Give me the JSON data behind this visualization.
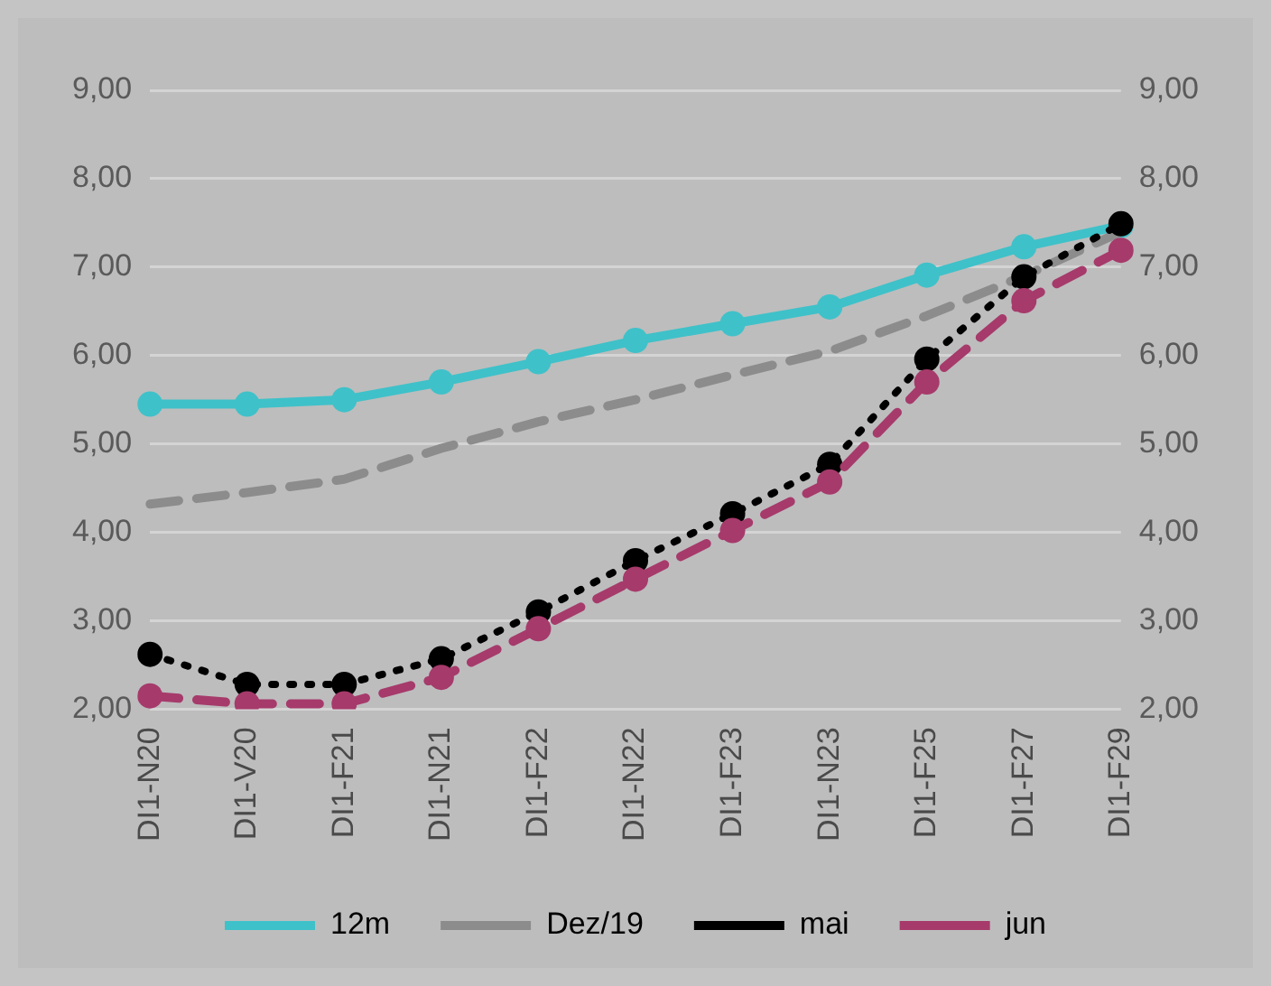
{
  "chart_data": {
    "type": "line",
    "categories": [
      "DI1-N20",
      "DI1-V20",
      "DI1-F21",
      "DI1-N21",
      "DI1-F22",
      "DI1-N22",
      "DI1-F23",
      "DI1-N23",
      "DI1-F25",
      "DI1-F27",
      "DI1-F29"
    ],
    "series": [
      {
        "name": "12m",
        "color": "#3fc1c9",
        "line_style": "solid",
        "marker": "circle",
        "values": [
          5.45,
          5.45,
          5.5,
          5.7,
          5.93,
          6.17,
          6.36,
          6.55,
          6.91,
          7.23,
          7.47
        ]
      },
      {
        "name": "Dez/19",
        "color": "#8c8c8c",
        "line_style": "dashed",
        "marker": "none",
        "values": [
          4.32,
          4.45,
          4.6,
          4.95,
          5.25,
          5.5,
          5.78,
          6.05,
          6.45,
          6.9,
          7.4
        ]
      },
      {
        "name": "mai",
        "color": "#000000",
        "line_style": "dotted",
        "marker": "circle",
        "values": [
          2.62,
          2.28,
          2.28,
          2.57,
          3.1,
          3.68,
          4.21,
          4.77,
          5.96,
          6.89,
          7.49
        ]
      },
      {
        "name": "jun",
        "color": "#a63a6b",
        "line_style": "dashed",
        "marker": "circle",
        "values": [
          2.15,
          2.06,
          2.06,
          2.36,
          2.91,
          3.47,
          4.02,
          4.57,
          5.7,
          6.62,
          7.19
        ]
      }
    ],
    "ylim": [
      2,
      9
    ],
    "yticks": [
      {
        "value": 2,
        "label": "2,00"
      },
      {
        "value": 3,
        "label": "3,00"
      },
      {
        "value": 4,
        "label": "4,00"
      },
      {
        "value": 5,
        "label": "5,00"
      },
      {
        "value": 6,
        "label": "6,00"
      },
      {
        "value": 7,
        "label": "7,00"
      },
      {
        "value": 8,
        "label": "8,00"
      },
      {
        "value": 9,
        "label": "9,00"
      }
    ],
    "y2lim": [
      2,
      9
    ],
    "y2ticks": [
      {
        "value": 2,
        "label": "2,00"
      },
      {
        "value": 3,
        "label": "3,00"
      },
      {
        "value": 4,
        "label": "4,00"
      },
      {
        "value": 5,
        "label": "5,00"
      },
      {
        "value": 6,
        "label": "6,00"
      },
      {
        "value": 7,
        "label": "7,00"
      },
      {
        "value": 8,
        "label": "8,00"
      },
      {
        "value": 9,
        "label": "9,00"
      }
    ],
    "grid": "y",
    "legend": "bottom"
  }
}
